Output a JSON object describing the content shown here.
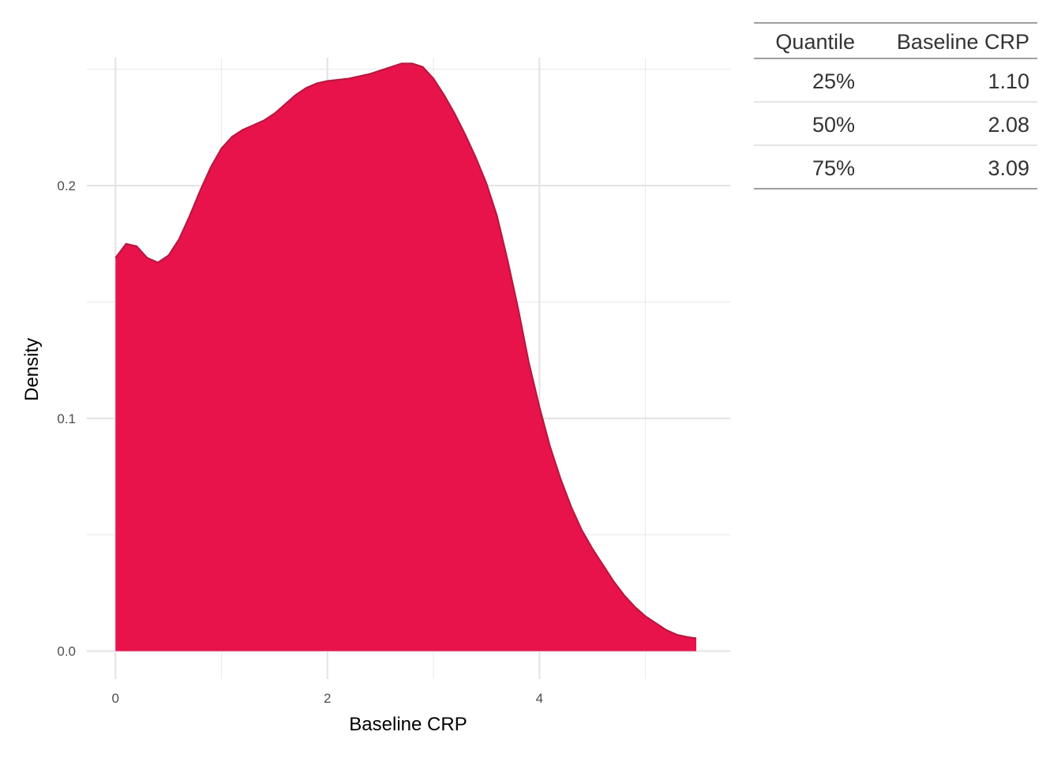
{
  "chart_data": {
    "type": "area",
    "xlabel": "Baseline CRP",
    "ylabel": "Density",
    "xlim": [
      -0.27,
      5.8
    ],
    "ylim": [
      -0.012,
      0.255
    ],
    "x_ticks": [
      0,
      2,
      4
    ],
    "x_tick_labels": [
      "0",
      "2",
      "4"
    ],
    "x_minor_ticks": [
      1,
      3,
      5
    ],
    "y_ticks": [
      0.0,
      0.1,
      0.2
    ],
    "y_tick_labels": [
      "0.0",
      "0.1",
      "0.2"
    ],
    "y_minor_ticks": [
      0.05,
      0.15,
      0.25
    ],
    "grid": true,
    "fill_color": "#E8134A",
    "line_color": "#B5173F",
    "points": [
      [
        0.0,
        0.169
      ],
      [
        0.1,
        0.175
      ],
      [
        0.2,
        0.174
      ],
      [
        0.3,
        0.169
      ],
      [
        0.4,
        0.167
      ],
      [
        0.5,
        0.17
      ],
      [
        0.6,
        0.177
      ],
      [
        0.7,
        0.187
      ],
      [
        0.8,
        0.198
      ],
      [
        0.9,
        0.208
      ],
      [
        1.0,
        0.216
      ],
      [
        1.1,
        0.221
      ],
      [
        1.2,
        0.224
      ],
      [
        1.3,
        0.226
      ],
      [
        1.4,
        0.228
      ],
      [
        1.5,
        0.231
      ],
      [
        1.6,
        0.235
      ],
      [
        1.7,
        0.239
      ],
      [
        1.8,
        0.242
      ],
      [
        1.9,
        0.244
      ],
      [
        2.0,
        0.245
      ],
      [
        2.2,
        0.246
      ],
      [
        2.4,
        0.248
      ],
      [
        2.6,
        0.251
      ],
      [
        2.7,
        0.2525
      ],
      [
        2.8,
        0.2525
      ],
      [
        2.9,
        0.251
      ],
      [
        3.0,
        0.246
      ],
      [
        3.1,
        0.239
      ],
      [
        3.2,
        0.231
      ],
      [
        3.3,
        0.222
      ],
      [
        3.4,
        0.212
      ],
      [
        3.5,
        0.201
      ],
      [
        3.6,
        0.187
      ],
      [
        3.7,
        0.168
      ],
      [
        3.8,
        0.147
      ],
      [
        3.9,
        0.124
      ],
      [
        4.0,
        0.105
      ],
      [
        4.1,
        0.088
      ],
      [
        4.2,
        0.074
      ],
      [
        4.3,
        0.062
      ],
      [
        4.4,
        0.052
      ],
      [
        4.5,
        0.044
      ],
      [
        4.6,
        0.037
      ],
      [
        4.7,
        0.03
      ],
      [
        4.8,
        0.024
      ],
      [
        4.9,
        0.019
      ],
      [
        5.0,
        0.015
      ],
      [
        5.1,
        0.012
      ],
      [
        5.2,
        0.009
      ],
      [
        5.3,
        0.007
      ],
      [
        5.4,
        0.006
      ],
      [
        5.48,
        0.0055
      ]
    ]
  },
  "quantile_table": {
    "headers": [
      "Quantile",
      "Baseline CRP"
    ],
    "rows": [
      [
        "25%",
        "1.10"
      ],
      [
        "50%",
        "2.08"
      ],
      [
        "75%",
        "3.09"
      ]
    ],
    "rule_color": "#9e9e9e",
    "row_rule_color": "#d3d3d3"
  }
}
